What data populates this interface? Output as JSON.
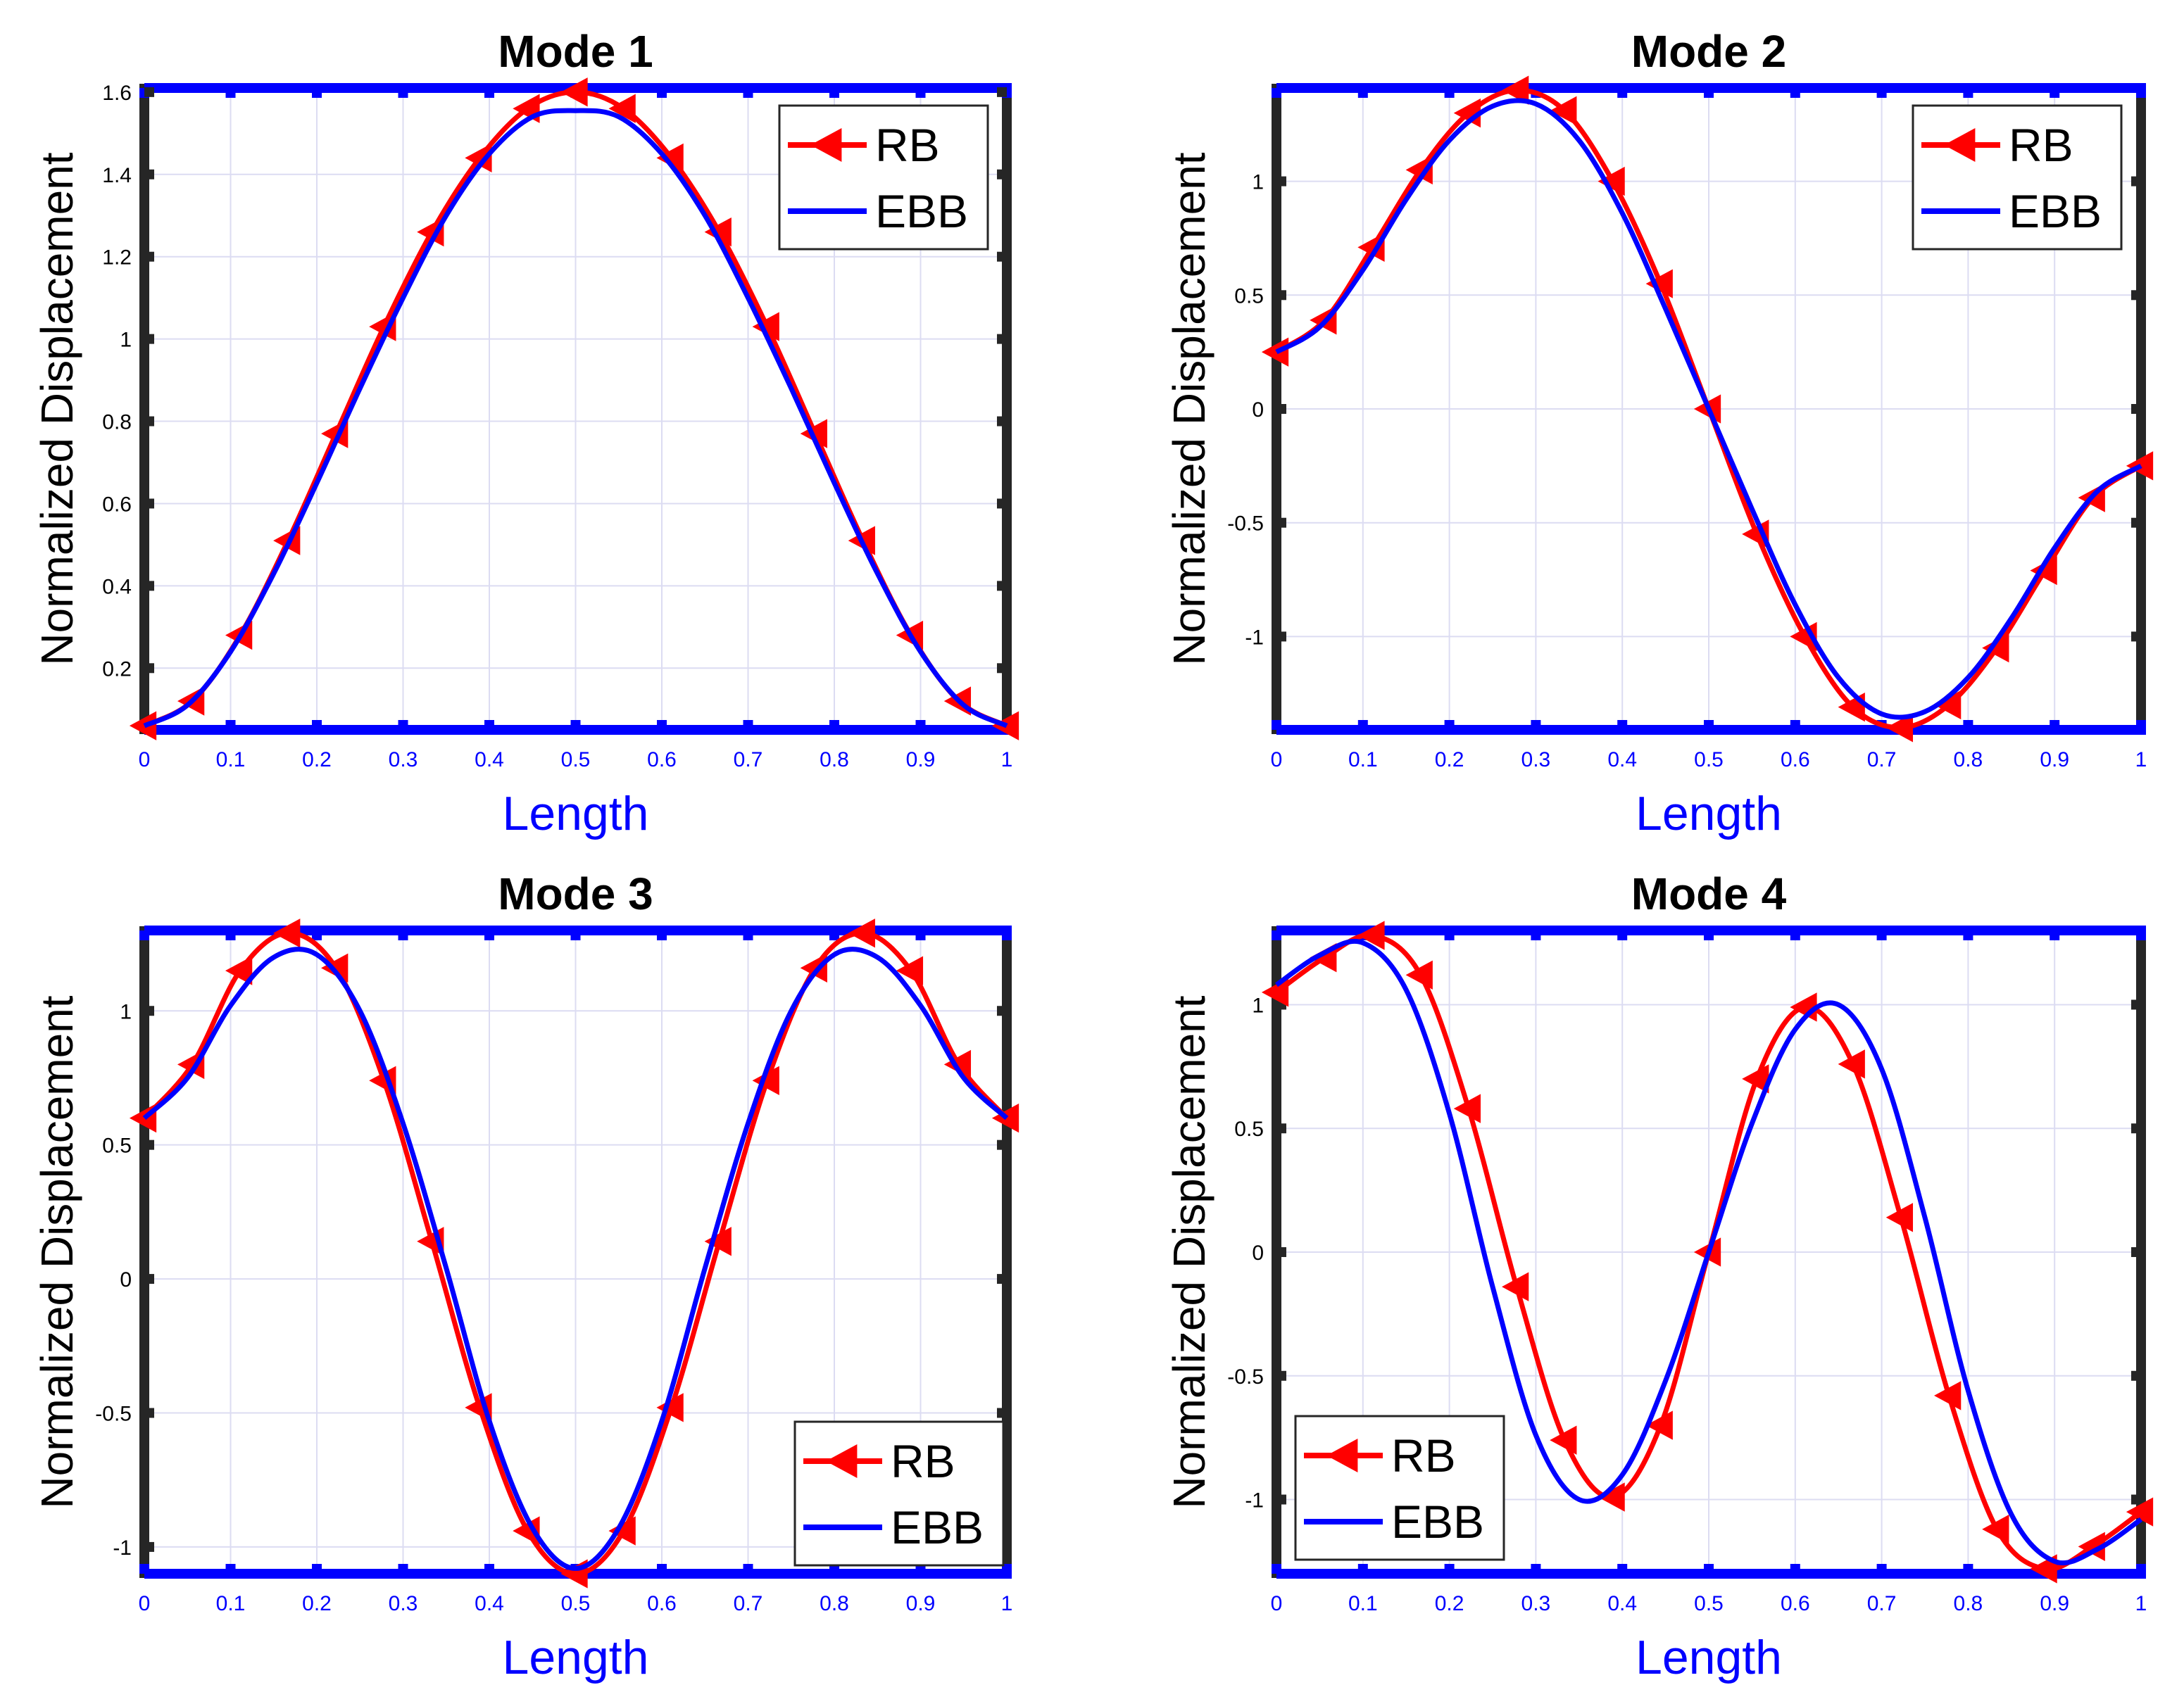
{
  "colors": {
    "rb": "#ff0000",
    "ebb": "#0000ff",
    "axis_x": "#0000ff",
    "axis_y": "#262626",
    "grid": "#dcdcf2",
    "title": "#000000"
  },
  "chart_data": [
    {
      "type": "line",
      "title": "Mode 1",
      "xlabel": "Length",
      "ylabel": "Normalized Displacement",
      "xlim": [
        0,
        1
      ],
      "ylim": [
        0.05,
        1.61
      ],
      "xticks": [
        0,
        0.1,
        0.2,
        0.3,
        0.4,
        0.5,
        0.6,
        0.7,
        0.8,
        0.9,
        1
      ],
      "xtick_labels": [
        "0",
        "0.1",
        "0.2",
        "0.3",
        "0.4",
        "0.5",
        "0.6",
        "0.7",
        "0.8",
        "0.9",
        "1"
      ],
      "yticks": [
        0.2,
        0.4,
        0.6,
        0.8,
        1,
        1.2,
        1.4,
        1.6
      ],
      "ytick_labels": [
        "0.2",
        "0.4",
        "0.6",
        "0.8",
        "1",
        "1.2",
        "1.4",
        "1.6"
      ],
      "grid": true,
      "legend_position": "top-right",
      "series": [
        {
          "name": "RB",
          "marker": "left-triangle",
          "x": [
            0,
            0.0556,
            0.1111,
            0.1667,
            0.2222,
            0.2778,
            0.3333,
            0.3889,
            0.4444,
            0.5,
            0.5556,
            0.6111,
            0.6667,
            0.7222,
            0.7778,
            0.8333,
            0.8889,
            0.9444,
            1
          ],
          "y": [
            0.06,
            0.12,
            0.28,
            0.51,
            0.77,
            1.03,
            1.26,
            1.44,
            1.56,
            1.6,
            1.56,
            1.44,
            1.26,
            1.03,
            0.77,
            0.51,
            0.28,
            0.12,
            0.06
          ]
        },
        {
          "name": "EBB",
          "marker": "none",
          "x": [
            0,
            0.05,
            0.1,
            0.15,
            0.2,
            0.25,
            0.3,
            0.35,
            0.4,
            0.45,
            0.5,
            0.55,
            0.6,
            0.65,
            0.7,
            0.75,
            0.8,
            0.85,
            0.9,
            0.95,
            1
          ],
          "y": [
            0.06,
            0.11,
            0.24,
            0.43,
            0.65,
            0.88,
            1.1,
            1.3,
            1.45,
            1.54,
            1.555,
            1.54,
            1.45,
            1.3,
            1.1,
            0.88,
            0.65,
            0.43,
            0.24,
            0.11,
            0.06
          ]
        }
      ]
    },
    {
      "type": "line",
      "title": "Mode 2",
      "xlabel": "Length",
      "ylabel": "Normalized Displacement",
      "xlim": [
        0,
        1
      ],
      "ylim": [
        -1.41,
        1.41
      ],
      "xticks": [
        0,
        0.1,
        0.2,
        0.3,
        0.4,
        0.5,
        0.6,
        0.7,
        0.8,
        0.9,
        1
      ],
      "xtick_labels": [
        "0",
        "0.1",
        "0.2",
        "0.3",
        "0.4",
        "0.5",
        "0.6",
        "0.7",
        "0.8",
        "0.9",
        "1"
      ],
      "yticks": [
        -1,
        -0.5,
        0,
        0.5,
        1
      ],
      "ytick_labels": [
        "-1",
        "-0.5",
        "0",
        "0.5",
        "1"
      ],
      "grid": true,
      "legend_position": "top-right",
      "series": [
        {
          "name": "RB",
          "marker": "left-triangle",
          "x": [
            0,
            0.0556,
            0.1111,
            0.1667,
            0.2222,
            0.2778,
            0.3333,
            0.3889,
            0.4444,
            0.5,
            0.5556,
            0.6111,
            0.6667,
            0.7222,
            0.7778,
            0.8333,
            0.8889,
            0.9444,
            1
          ],
          "y": [
            0.25,
            0.39,
            0.71,
            1.05,
            1.3,
            1.4,
            1.31,
            1.0,
            0.55,
            0.0,
            -0.55,
            -1.0,
            -1.31,
            -1.4,
            -1.3,
            -1.05,
            -0.71,
            -0.39,
            -0.25
          ]
        },
        {
          "name": "EBB",
          "marker": "none",
          "x": [
            0,
            0.05,
            0.1,
            0.15,
            0.2,
            0.25,
            0.3,
            0.35,
            0.4,
            0.45,
            0.5,
            0.55,
            0.6,
            0.65,
            0.7,
            0.75,
            0.8,
            0.85,
            0.9,
            0.95,
            1
          ],
          "y": [
            0.25,
            0.36,
            0.61,
            0.92,
            1.18,
            1.33,
            1.34,
            1.18,
            0.86,
            0.44,
            0.0,
            -0.44,
            -0.86,
            -1.18,
            -1.34,
            -1.33,
            -1.18,
            -0.92,
            -0.61,
            -0.36,
            -0.25
          ]
        }
      ]
    },
    {
      "type": "line",
      "title": "Mode 3",
      "xlabel": "Length",
      "ylabel": "Normalized Displacement",
      "xlim": [
        0,
        1
      ],
      "ylim": [
        -1.1,
        1.3
      ],
      "xticks": [
        0,
        0.1,
        0.2,
        0.3,
        0.4,
        0.5,
        0.6,
        0.7,
        0.8,
        0.9,
        1
      ],
      "xtick_labels": [
        "0",
        "0.1",
        "0.2",
        "0.3",
        "0.4",
        "0.5",
        "0.6",
        "0.7",
        "0.8",
        "0.9",
        "1"
      ],
      "yticks": [
        -1,
        -0.5,
        0,
        0.5,
        1
      ],
      "ytick_labels": [
        "-1",
        "-0.5",
        "0",
        "0.5",
        "1"
      ],
      "grid": true,
      "legend_position": "bottom-right",
      "series": [
        {
          "name": "RB",
          "marker": "left-triangle",
          "x": [
            0,
            0.0556,
            0.1111,
            0.1667,
            0.2222,
            0.2778,
            0.3333,
            0.3889,
            0.4444,
            0.5,
            0.5556,
            0.6111,
            0.6667,
            0.7222,
            0.7778,
            0.8333,
            0.8889,
            0.9444,
            1
          ],
          "y": [
            0.6,
            0.8,
            1.15,
            1.29,
            1.16,
            0.74,
            0.14,
            -0.48,
            -0.94,
            -1.1,
            -0.94,
            -0.48,
            0.14,
            0.74,
            1.16,
            1.29,
            1.15,
            0.8,
            0.6
          ]
        },
        {
          "name": "EBB",
          "marker": "none",
          "x": [
            0,
            0.05,
            0.1,
            0.15,
            0.2,
            0.25,
            0.3,
            0.35,
            0.4,
            0.45,
            0.5,
            0.55,
            0.6,
            0.65,
            0.7,
            0.75,
            0.8,
            0.85,
            0.9,
            0.95,
            1
          ],
          "y": [
            0.6,
            0.75,
            1.02,
            1.2,
            1.21,
            1.0,
            0.58,
            0.04,
            -0.53,
            -0.93,
            -1.08,
            -0.93,
            -0.53,
            0.04,
            0.58,
            1.0,
            1.21,
            1.2,
            1.02,
            0.75,
            0.6
          ]
        }
      ]
    },
    {
      "type": "line",
      "title": "Mode 4",
      "xlabel": "Length",
      "ylabel": "Normalized Displacement",
      "xlim": [
        0,
        1
      ],
      "ylim": [
        -1.3,
        1.3
      ],
      "xticks": [
        0,
        0.1,
        0.2,
        0.3,
        0.4,
        0.5,
        0.6,
        0.7,
        0.8,
        0.9,
        1
      ],
      "xtick_labels": [
        "0",
        "0.1",
        "0.2",
        "0.3",
        "0.4",
        "0.5",
        "0.6",
        "0.7",
        "0.8",
        "0.9",
        "1"
      ],
      "yticks": [
        -1,
        -0.5,
        0,
        0.5,
        1
      ],
      "ytick_labels": [
        "-1",
        "-0.5",
        "0",
        "0.5",
        "1"
      ],
      "grid": true,
      "legend_position": "bottom-left",
      "series": [
        {
          "name": "RB",
          "marker": "left-triangle",
          "x": [
            0,
            0.0556,
            0.1111,
            0.1667,
            0.2222,
            0.2778,
            0.3333,
            0.3889,
            0.4444,
            0.5,
            0.5556,
            0.6111,
            0.6667,
            0.7222,
            0.7778,
            0.8333,
            0.8889,
            0.9444,
            1
          ],
          "y": [
            1.05,
            1.19,
            1.28,
            1.12,
            0.58,
            -0.14,
            -0.76,
            -0.99,
            -0.7,
            0.0,
            0.7,
            0.99,
            0.76,
            0.14,
            -0.58,
            -1.12,
            -1.28,
            -1.19,
            -1.05
          ]
        },
        {
          "name": "EBB",
          "marker": "none",
          "x": [
            0,
            0.05,
            0.1,
            0.15,
            0.2,
            0.25,
            0.3,
            0.35,
            0.4,
            0.45,
            0.5,
            0.55,
            0.6,
            0.65,
            0.7,
            0.75,
            0.8,
            0.85,
            0.9,
            0.95,
            1
          ],
          "y": [
            1.08,
            1.2,
            1.25,
            1.06,
            0.56,
            -0.14,
            -0.74,
            -1.0,
            -0.9,
            -0.52,
            0.0,
            0.52,
            0.9,
            1.0,
            0.74,
            0.14,
            -0.56,
            -1.06,
            -1.25,
            -1.2,
            -1.08
          ]
        }
      ]
    }
  ]
}
